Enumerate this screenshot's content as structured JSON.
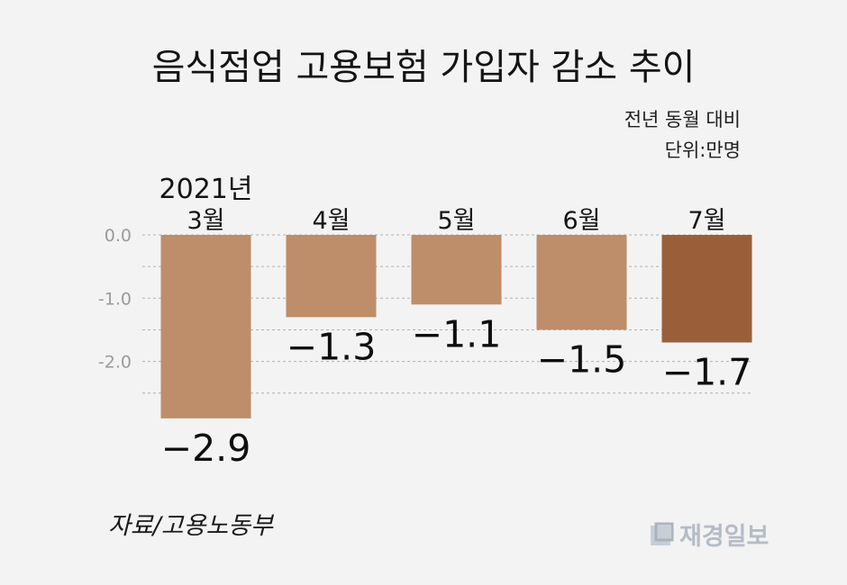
{
  "header": {
    "title": "음식점업 고용보험 가입자 감소 추이",
    "note": "전년 동월 대비",
    "unit": "단위:만명"
  },
  "footer": {
    "source": "자료/고용노동부",
    "logo_text": "재경일보",
    "logo_icon": "jaegyeong-logo-icon"
  },
  "colors": {
    "bar": "#be8d69",
    "bar_highlight": "#9a5f38",
    "axis_text": "#9a9a9a",
    "grid": "#b0b0b0"
  },
  "chart_data": {
    "type": "bar",
    "title": "음식점업 고용보험 가입자 감소 추이",
    "year_label": "2021년",
    "categories": [
      "3월",
      "4월",
      "5월",
      "6월",
      "7월"
    ],
    "values": [
      -2.9,
      -1.3,
      -1.1,
      -1.5,
      -1.7
    ],
    "value_labels": [
      "−2.9",
      "−1.3",
      "−1.1",
      "−1.5",
      "−1.7"
    ],
    "highlight_index": 4,
    "ylim": [
      -2.5,
      0
    ],
    "yticks": [
      0.0,
      -1.0,
      -2.0
    ],
    "ytick_labels": [
      "0.0",
      "-1.0",
      "-2.0"
    ],
    "grid": true
  }
}
